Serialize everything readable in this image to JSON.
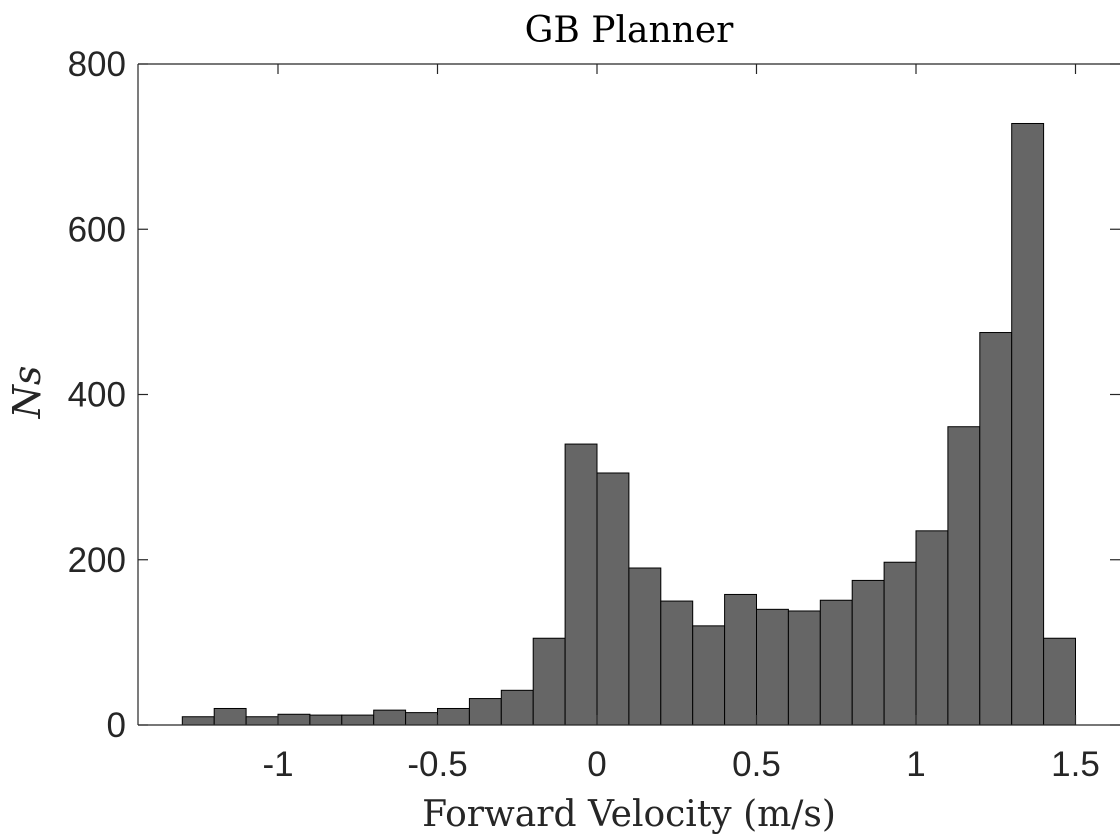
{
  "chart_data": {
    "type": "bar",
    "title": "GB Planner",
    "xlabel": "Forward Velocity (m/s)",
    "ylabel": "Ns",
    "xlim": [
      -1.45,
      1.5
    ],
    "ylim": [
      0,
      800
    ],
    "xticks": [
      -1,
      -0.5,
      0,
      0.5,
      1,
      1.5
    ],
    "xtick_labels": [
      "-1",
      "-0.5",
      "0",
      "0.5",
      "1",
      "1.5"
    ],
    "yticks": [
      0,
      200,
      400,
      600,
      800
    ],
    "ytick_labels": [
      "0",
      "200",
      "400",
      "600",
      "800"
    ],
    "bin_width": 0.1,
    "bin_edges_start": -1.3,
    "values": [
      10,
      20,
      10,
      13,
      12,
      12,
      18,
      15,
      20,
      32,
      42,
      105,
      340,
      305,
      190,
      150,
      120,
      158,
      140,
      138,
      151,
      175,
      197,
      235,
      361,
      475,
      728,
      105
    ],
    "bar_color": "#666666",
    "edge_color": "#000000",
    "grid": false,
    "box": true
  }
}
